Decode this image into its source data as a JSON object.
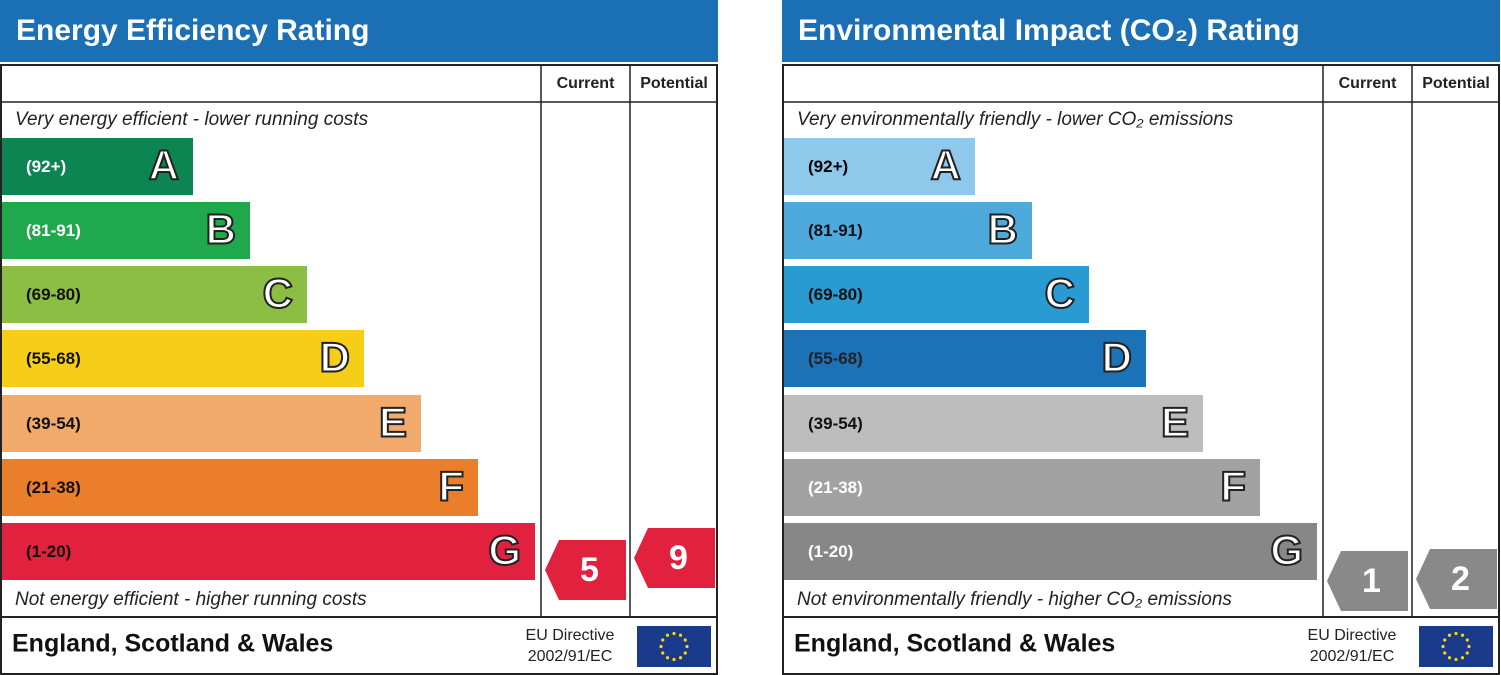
{
  "panels": [
    {
      "title": "Energy Efficiency Rating",
      "header": {
        "current": "Current",
        "potential": "Potential"
      },
      "top_text": "Very energy efficient - lower running costs",
      "bands": [
        {
          "range": "(92+)",
          "letter": "A",
          "color": "#0d8552",
          "text_color": "#ffffff"
        },
        {
          "range": "(81-91)",
          "letter": "B",
          "color": "#20a84c",
          "text_color": "#ffffff"
        },
        {
          "range": "(69-80)",
          "letter": "C",
          "color": "#8dbe44",
          "text_color": "#111111"
        },
        {
          "range": "(55-68)",
          "letter": "D",
          "color": "#f6cd17",
          "text_color": "#111111"
        },
        {
          "range": "(39-54)",
          "letter": "E",
          "color": "#f1a96c",
          "text_color": "#111111"
        },
        {
          "range": "(21-38)",
          "letter": "F",
          "color": "#eb7e2b",
          "text_color": "#111111"
        },
        {
          "range": "(1-20)",
          "letter": "G",
          "color": "#e2213e",
          "text_color": "#111111"
        }
      ],
      "bottom_text": "Not energy efficient - higher running costs",
      "footer": {
        "region": "England, Scotland & Wales",
        "directive_line1": "EU Directive",
        "directive_line2": "2002/91/EC"
      },
      "current": 5,
      "potential": 9,
      "arrow_color": "#e2213e"
    },
    {
      "title": "Environmental Impact (CO₂) Rating",
      "header": {
        "current": "Current",
        "potential": "Potential"
      },
      "top_text": "Very environmentally friendly - lower CO₂ emissions",
      "bands": [
        {
          "range": "(92+)",
          "letter": "A",
          "color": "#8ec8ea",
          "text_color": "#000000"
        },
        {
          "range": "(81-91)",
          "letter": "B",
          "color": "#4eaadd",
          "text_color": "#111111"
        },
        {
          "range": "(69-80)",
          "letter": "C",
          "color": "#2a9ad3",
          "text_color": "#111111"
        },
        {
          "range": "(55-68)",
          "letter": "D",
          "color": "#1c72b7",
          "text_color": "#222222"
        },
        {
          "range": "(39-54)",
          "letter": "E",
          "color": "#bdbdbd",
          "text_color": "#111111"
        },
        {
          "range": "(21-38)",
          "letter": "F",
          "color": "#a2a2a2",
          "text_color": "#ffffff"
        },
        {
          "range": "(1-20)",
          "letter": "G",
          "color": "#878787",
          "text_color": "#ffffff"
        }
      ],
      "bottom_text": "Not environmentally friendly - higher CO₂ emissions",
      "footer": {
        "region": "England, Scotland & Wales",
        "directive_line1": "EU Directive",
        "directive_line2": "2002/91/EC"
      },
      "current": 1,
      "potential": 2,
      "arrow_color": "#898989"
    }
  ]
}
